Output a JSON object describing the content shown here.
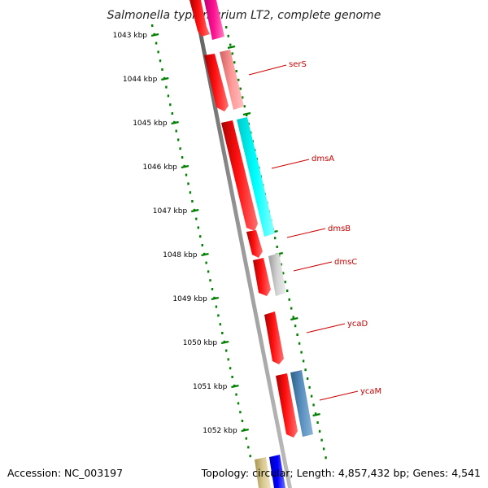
{
  "title": "Salmonella typhimurium LT2, complete genome",
  "accession": "Accession: NC_003197",
  "topology": "Topology: circular; Length: 4,857,432 bp; Genes: 4,541",
  "scale": {
    "unit": "kbp",
    "labels": [
      "1043 kbp",
      "1044 kbp",
      "1045 kbp",
      "1046 kbp",
      "1047 kbp",
      "1048 kbp",
      "1049 kbp",
      "1050 kbp",
      "1051 kbp",
      "1052 kbp"
    ],
    "tick_color": "#008000"
  },
  "genes": [
    {
      "name": "serS",
      "color": "#ff8080"
    },
    {
      "name": "dmsA",
      "color": "#00ffff"
    },
    {
      "name": "dmsB",
      "color": "#ff0000"
    },
    {
      "name": "dmsC",
      "color": "#c0c0c0"
    },
    {
      "name": "ycaD",
      "color": "#ff0000"
    },
    {
      "name": "ycaM",
      "color": "#4682b4"
    }
  ],
  "colors": {
    "cds": "#ff0000",
    "backbone": "#808080",
    "label": "#cc0000",
    "magenta": "#ff1493",
    "olive": "#c8b46e",
    "blue": "#0000ff"
  }
}
